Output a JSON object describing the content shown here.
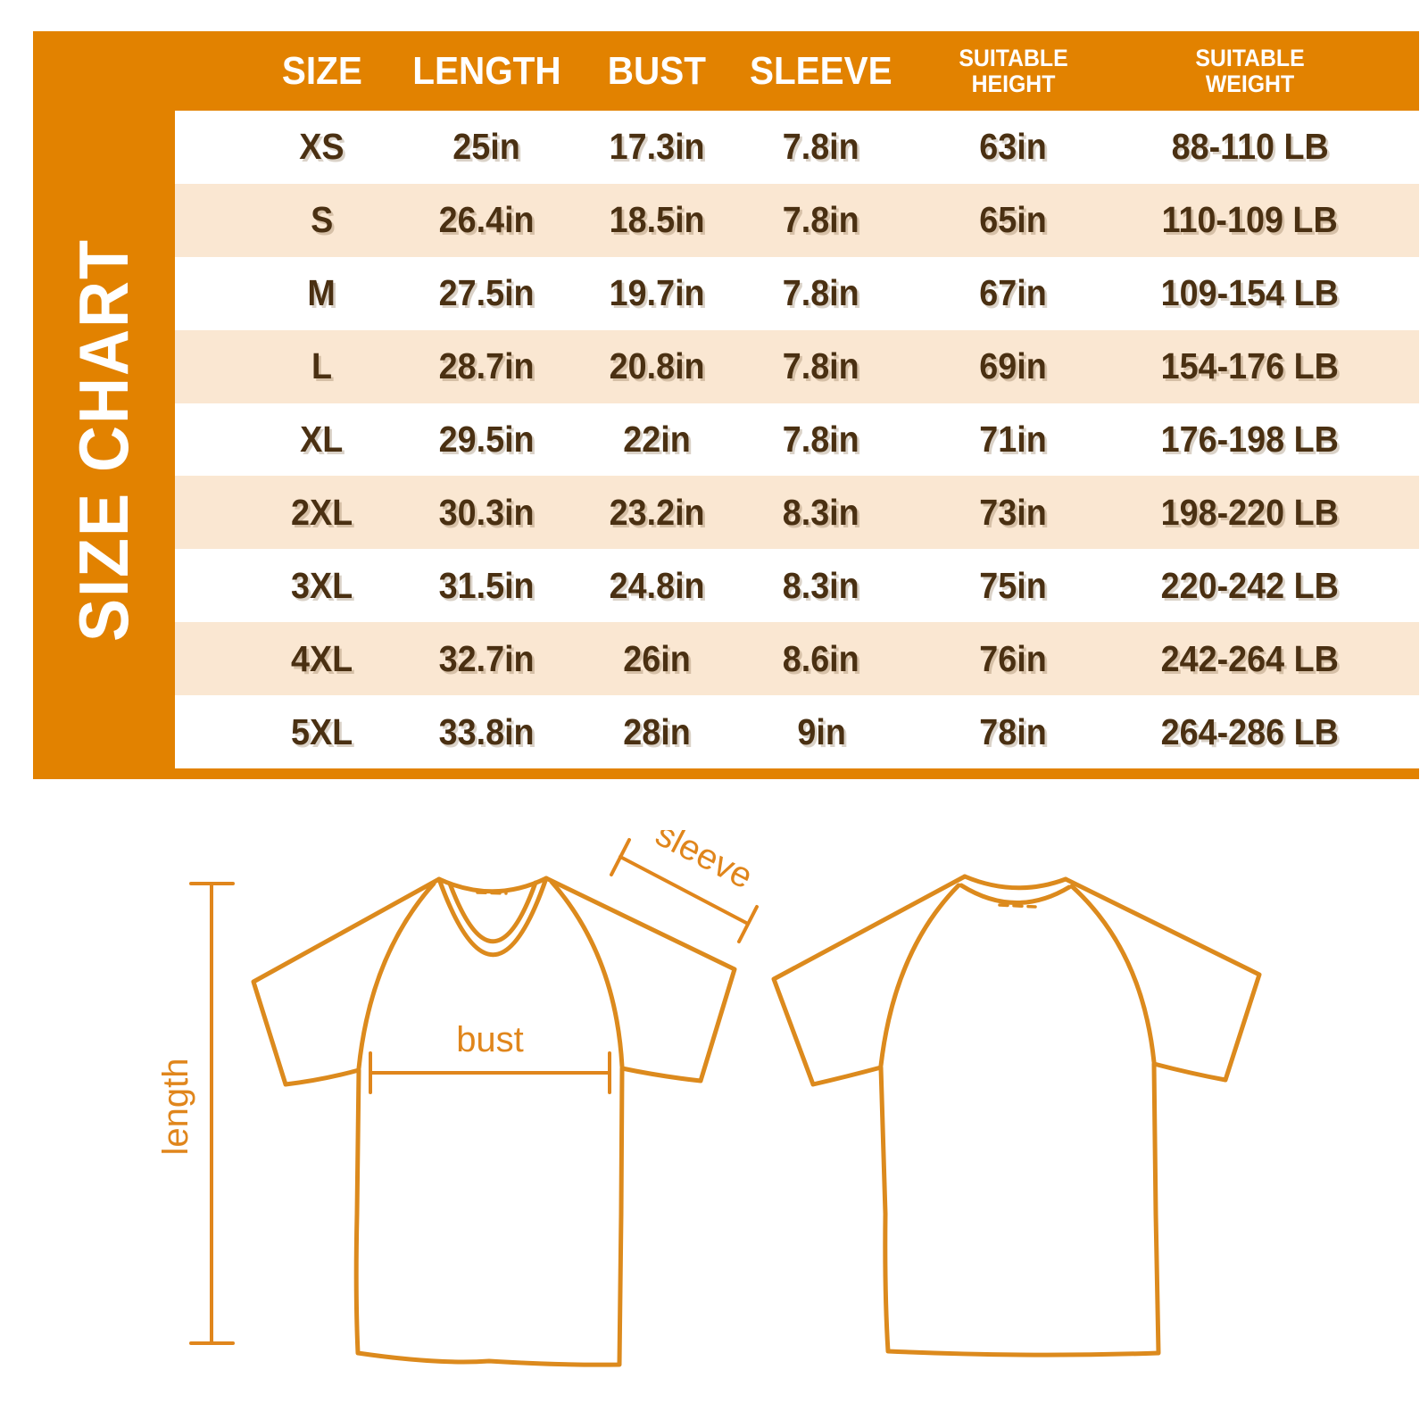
{
  "side_label": "SIZE CHART",
  "colors": {
    "orange": "#E28200",
    "cream_row": "#FAE7D2",
    "white_row": "#FFFFFF",
    "text_brown": "#4A3012",
    "diagram_orange": "#DC8A1D"
  },
  "table": {
    "headers": [
      [
        "SIZE"
      ],
      [
        "LENGTH"
      ],
      [
        "BUST"
      ],
      [
        "SLEEVE"
      ],
      [
        "SUITABLE",
        "HEIGHT"
      ],
      [
        "SUITABLE",
        "WEIGHT"
      ]
    ],
    "column_keys": [
      "size",
      "length",
      "bust",
      "sleeve",
      "height",
      "weight"
    ],
    "rows": [
      [
        "XS",
        "25in",
        "17.3in",
        "7.8in",
        "63in",
        "88-110 LB"
      ],
      [
        "S",
        "26.4in",
        "18.5in",
        "7.8in",
        "65in",
        "110-109 LB"
      ],
      [
        "M",
        "27.5in",
        "19.7in",
        "7.8in",
        "67in",
        "109-154 LB"
      ],
      [
        "L",
        "28.7in",
        "20.8in",
        "7.8in",
        "69in",
        "154-176 LB"
      ],
      [
        "XL",
        "29.5in",
        "22in",
        "7.8in",
        "71in",
        "176-198 LB"
      ],
      [
        "2XL",
        "30.3in",
        "23.2in",
        "8.3in",
        "73in",
        "198-220 LB"
      ],
      [
        "3XL",
        "31.5in",
        "24.8in",
        "8.3in",
        "75in",
        "220-242 LB"
      ],
      [
        "4XL",
        "32.7in",
        "26in",
        "8.6in",
        "76in",
        "242-264 LB"
      ],
      [
        "5XL",
        "33.8in",
        "28in",
        "9in",
        "78in",
        "264-286 LB"
      ]
    ]
  },
  "diagram": {
    "labels": {
      "length": "length",
      "bust": "bust",
      "sleeve": "sleeve"
    }
  },
  "chart_data": {
    "type": "table",
    "title": "SIZE CHART",
    "columns": [
      "SIZE",
      "LENGTH",
      "BUST",
      "SLEEVE",
      "SUITABLE HEIGHT",
      "SUITABLE WEIGHT"
    ],
    "rows": [
      [
        "XS",
        "25in",
        "17.3in",
        "7.8in",
        "63in",
        "88-110 LB"
      ],
      [
        "S",
        "26.4in",
        "18.5in",
        "7.8in",
        "65in",
        "110-109 LB"
      ],
      [
        "M",
        "27.5in",
        "19.7in",
        "7.8in",
        "67in",
        "109-154 LB"
      ],
      [
        "L",
        "28.7in",
        "20.8in",
        "7.8in",
        "69in",
        "154-176 LB"
      ],
      [
        "XL",
        "29.5in",
        "22in",
        "7.8in",
        "71in",
        "176-198 LB"
      ],
      [
        "2XL",
        "30.3in",
        "23.2in",
        "8.3in",
        "73in",
        "198-220 LB"
      ],
      [
        "3XL",
        "31.5in",
        "24.8in",
        "8.3in",
        "75in",
        "220-242 LB"
      ],
      [
        "4XL",
        "32.7in",
        "26in",
        "8.6in",
        "76in",
        "242-264 LB"
      ],
      [
        "5XL",
        "33.8in",
        "28in",
        "9in",
        "78in",
        "264-286 LB"
      ]
    ],
    "annotations": [
      "length",
      "bust",
      "sleeve"
    ]
  }
}
